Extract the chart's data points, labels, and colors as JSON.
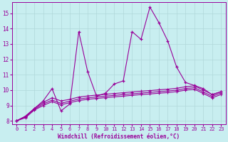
{
  "xlabel": "Windchill (Refroidissement éolien,°C)",
  "bg_color": "#c8eef0",
  "grid_color": "#b0d8da",
  "line_color": "#990099",
  "xlim": [
    -0.5,
    23.5
  ],
  "ylim": [
    7.8,
    15.7
  ],
  "xticks": [
    0,
    1,
    2,
    3,
    4,
    5,
    6,
    7,
    8,
    9,
    10,
    11,
    12,
    13,
    14,
    15,
    16,
    17,
    18,
    19,
    20,
    21,
    22,
    23
  ],
  "yticks": [
    8,
    9,
    10,
    11,
    12,
    13,
    14,
    15
  ],
  "series1_x": [
    0,
    1,
    2,
    3,
    4,
    5,
    6,
    7,
    8,
    9,
    10,
    11,
    12,
    13,
    14,
    15,
    16,
    17,
    18,
    19,
    20,
    21,
    22,
    23
  ],
  "series1_y": [
    8.0,
    8.3,
    8.8,
    9.3,
    10.1,
    8.65,
    9.1,
    13.8,
    11.2,
    9.6,
    9.8,
    10.4,
    10.6,
    13.8,
    13.3,
    15.4,
    14.4,
    13.2,
    11.5,
    10.5,
    10.3,
    10.1,
    9.7,
    9.9
  ],
  "series2_x": [
    0,
    1,
    2,
    3,
    4,
    5,
    6,
    7,
    8,
    9,
    10,
    11,
    12,
    13,
    14,
    15,
    16,
    17,
    18,
    19,
    20,
    21,
    22,
    23
  ],
  "series2_y": [
    8.0,
    8.3,
    8.8,
    9.2,
    9.5,
    9.3,
    9.4,
    9.55,
    9.62,
    9.68,
    9.73,
    9.78,
    9.83,
    9.88,
    9.93,
    9.97,
    10.02,
    10.06,
    10.12,
    10.22,
    10.28,
    10.0,
    9.72,
    9.9
  ],
  "series3_x": [
    0,
    1,
    2,
    3,
    4,
    5,
    6,
    7,
    8,
    9,
    10,
    11,
    12,
    13,
    14,
    15,
    16,
    17,
    18,
    19,
    20,
    21,
    22,
    23
  ],
  "series3_y": [
    8.0,
    8.25,
    8.75,
    9.1,
    9.35,
    9.15,
    9.28,
    9.42,
    9.5,
    9.56,
    9.61,
    9.66,
    9.71,
    9.76,
    9.81,
    9.85,
    9.9,
    9.94,
    10.0,
    10.1,
    10.16,
    9.88,
    9.6,
    9.82
  ],
  "series4_x": [
    0,
    1,
    2,
    3,
    4,
    5,
    6,
    7,
    8,
    9,
    10,
    11,
    12,
    13,
    14,
    15,
    16,
    17,
    18,
    19,
    20,
    21,
    22,
    23
  ],
  "series4_y": [
    8.0,
    8.2,
    8.7,
    9.0,
    9.25,
    9.05,
    9.18,
    9.32,
    9.4,
    9.46,
    9.51,
    9.56,
    9.61,
    9.66,
    9.71,
    9.75,
    9.8,
    9.84,
    9.9,
    10.0,
    10.06,
    9.78,
    9.5,
    9.72
  ]
}
